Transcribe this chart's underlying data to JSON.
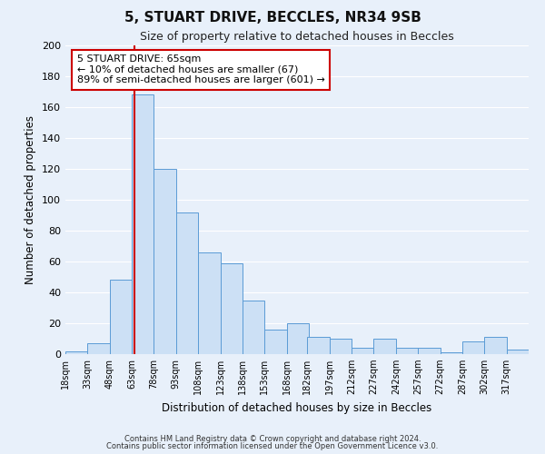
{
  "title": "5, STUART DRIVE, BECCLES, NR34 9SB",
  "subtitle": "Size of property relative to detached houses in Beccles",
  "xlabel": "Distribution of detached houses by size in Beccles",
  "ylabel": "Number of detached properties",
  "bin_labels": [
    "18sqm",
    "33sqm",
    "48sqm",
    "63sqm",
    "78sqm",
    "93sqm",
    "108sqm",
    "123sqm",
    "138sqm",
    "153sqm",
    "168sqm",
    "182sqm",
    "197sqm",
    "212sqm",
    "227sqm",
    "242sqm",
    "257sqm",
    "272sqm",
    "287sqm",
    "302sqm",
    "317sqm"
  ],
  "bin_starts": [
    18,
    33,
    48,
    63,
    78,
    93,
    108,
    123,
    138,
    153,
    168,
    182,
    197,
    212,
    227,
    242,
    257,
    272,
    287,
    302,
    317
  ],
  "bar_heights": [
    2,
    7,
    48,
    168,
    120,
    92,
    66,
    59,
    35,
    16,
    20,
    11,
    10,
    4,
    10,
    4,
    4,
    1,
    8,
    11,
    3
  ],
  "bin_width": 15,
  "ylim": [
    0,
    200
  ],
  "bar_facecolor": "#cce0f5",
  "bar_edgecolor": "#5b9bd5",
  "bg_color": "#e8f0fa",
  "grid_color": "#ffffff",
  "red_line_x": 65,
  "red_line_color": "#cc0000",
  "annotation_line1": "5 STUART DRIVE: 65sqm",
  "annotation_line2": "← 10% of detached houses are smaller (67)",
  "annotation_line3": "89% of semi-detached houses are larger (601) →",
  "annotation_box_color": "#ffffff",
  "annotation_box_edgecolor": "#cc0000",
  "footnote1": "Contains HM Land Registry data © Crown copyright and database right 2024.",
  "footnote2": "Contains public sector information licensed under the Open Government Licence v3.0."
}
